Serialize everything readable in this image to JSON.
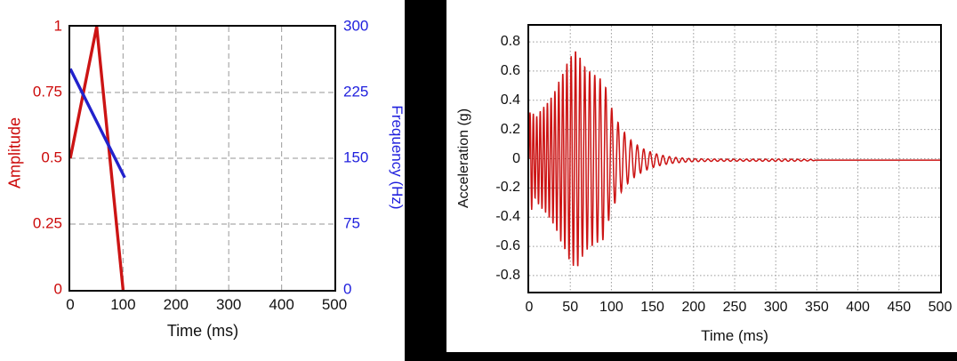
{
  "colors": {
    "red_line": "#cc1414",
    "blue_line": "#2222cc",
    "red_label": "#cc0a0a",
    "blue_label": "#1f1fdd",
    "tick_text": "#111111",
    "grid_left": "#aaaaaa",
    "grid_right": "#999999",
    "frame": "#000000",
    "background": "#ffffff",
    "divider": "#000000"
  },
  "chart_data": [
    {
      "type": "line",
      "title": "",
      "xlabel": "Time (ms)",
      "xlim": [
        0,
        500
      ],
      "x_ticks": [
        "0",
        "100",
        "200",
        "300",
        "400",
        "500"
      ],
      "x_tick_vals": [
        0,
        100,
        200,
        300,
        400,
        500
      ],
      "ylabel_left": "Amplitude",
      "ylim_left": [
        0,
        1
      ],
      "y_ticks_left": [
        "1",
        "0.75",
        "0.5",
        "0.25",
        "0"
      ],
      "y_tick_vals_left": [
        1,
        0.75,
        0.5,
        0.25,
        0
      ],
      "ylabel_right": "Frequency (Hz)",
      "ylim_right": [
        0,
        300
      ],
      "y_ticks_right": [
        "300",
        "225",
        "150",
        "75",
        "0"
      ],
      "y_tick_vals_right": [
        300,
        225,
        150,
        75,
        0
      ],
      "grid": "dashed",
      "legend": "none",
      "series": [
        {
          "name": "amplitude-envelope",
          "axis": "left",
          "color": "#cc1414",
          "points": [
            [
              0,
              0.5
            ],
            [
              50,
              1.0
            ],
            [
              100,
              0.0
            ]
          ]
        },
        {
          "name": "frequency-sweep",
          "axis": "right",
          "color": "#2222cc",
          "points": [
            [
              0,
              252
            ],
            [
              103,
              128
            ]
          ]
        }
      ]
    },
    {
      "type": "line",
      "title": "",
      "xlabel": "Time (ms)",
      "xlim": [
        0,
        500
      ],
      "x_ticks": [
        "0",
        "50",
        "100",
        "150",
        "200",
        "250",
        "300",
        "350",
        "400",
        "450",
        "500"
      ],
      "x_tick_vals": [
        0,
        50,
        100,
        150,
        200,
        250,
        300,
        350,
        400,
        450,
        500
      ],
      "ylabel": "Acceleration (g)",
      "ylim": [
        -0.91,
        0.91
      ],
      "y_ticks": [
        "0.8",
        "0.6",
        "0.4",
        "0.2",
        "0",
        "-0.2",
        "-0.4",
        "-0.6",
        "-0.8"
      ],
      "y_tick_vals": [
        0.8,
        0.6,
        0.4,
        0.2,
        0,
        -0.2,
        -0.4,
        -0.6,
        -0.8
      ],
      "grid": "dotted",
      "legend": "none",
      "series": [
        {
          "name": "acceleration-waveform",
          "color": "#cc1414",
          "signal": {
            "kind": "decaying-chirp-burst",
            "f_start_hz": 250,
            "f_end_hz": 128,
            "sweep_end_ms": 105,
            "baseline_offset_g": -0.01,
            "offset_ramp_end_ms": 120,
            "flat_after_ms": 350,
            "peak_g": 0.75,
            "peak_time_ms": 58,
            "envelope_g": [
              [
                0,
                0.3
              ],
              [
                3,
                0.35
              ],
              [
                7,
                0.27
              ],
              [
                11,
                0.31
              ],
              [
                15,
                0.34
              ],
              [
                20,
                0.37
              ],
              [
                25,
                0.41
              ],
              [
                30,
                0.45
              ],
              [
                34,
                0.5
              ],
              [
                38,
                0.56
              ],
              [
                42,
                0.6
              ],
              [
                46,
                0.66
              ],
              [
                50,
                0.7
              ],
              [
                55,
                0.74
              ],
              [
                58,
                0.75
              ],
              [
                62,
                0.7
              ],
              [
                66,
                0.65
              ],
              [
                70,
                0.62
              ],
              [
                75,
                0.6
              ],
              [
                80,
                0.58
              ],
              [
                85,
                0.56
              ],
              [
                90,
                0.55
              ],
              [
                93,
                0.5
              ],
              [
                96,
                0.43
              ],
              [
                100,
                0.36
              ],
              [
                104,
                0.3
              ],
              [
                108,
                0.26
              ],
              [
                112,
                0.22
              ],
              [
                116,
                0.19
              ],
              [
                120,
                0.16
              ],
              [
                125,
                0.13
              ],
              [
                130,
                0.11
              ],
              [
                135,
                0.09
              ],
              [
                140,
                0.075
              ],
              [
                145,
                0.062
              ],
              [
                150,
                0.052
              ],
              [
                155,
                0.043
              ],
              [
                160,
                0.036
              ],
              [
                165,
                0.03
              ],
              [
                170,
                0.025
              ],
              [
                175,
                0.021
              ],
              [
                180,
                0.018
              ],
              [
                190,
                0.013
              ],
              [
                200,
                0.01
              ],
              [
                220,
                0.008
              ],
              [
                250,
                0.007
              ],
              [
                280,
                0.007
              ],
              [
                310,
                0.008
              ],
              [
                330,
                0.006
              ],
              [
                345,
                0.005
              ],
              [
                349,
                0.0
              ],
              [
                500,
                0.0
              ]
            ]
          }
        }
      ]
    }
  ]
}
